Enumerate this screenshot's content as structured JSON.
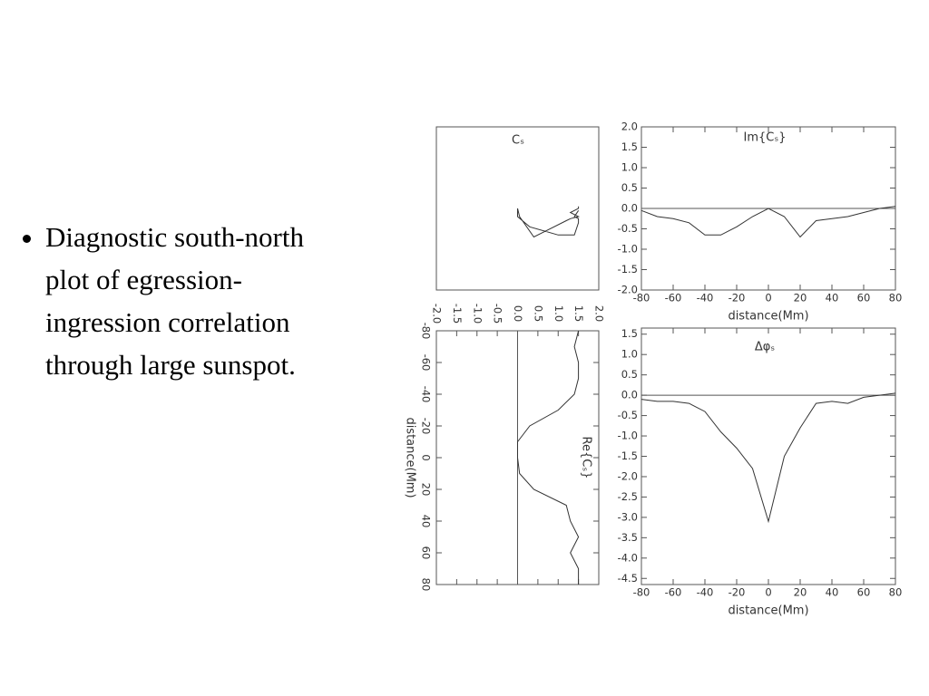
{
  "bullet": {
    "lines": [
      "Diagnostic south-north",
      "plot of egression-",
      "ingression correlation",
      "through large sunspot."
    ]
  },
  "chart_data": [
    {
      "type": "line",
      "title": "Cₛ",
      "color": "#333333",
      "x": [
        1.5,
        1.4,
        1.5,
        1.5,
        1.4,
        1.0,
        0.3,
        0.0,
        0.0,
        0.05,
        0.4,
        1.2,
        1.3,
        1.5,
        1.3,
        1.5,
        1.5
      ],
      "y": [
        -0.05,
        -0.2,
        -0.25,
        -0.35,
        -0.65,
        -0.65,
        -0.45,
        -0.2,
        0.0,
        -0.2,
        -0.7,
        -0.3,
        -0.25,
        -0.2,
        -0.1,
        0.0,
        0.05
      ],
      "xlim": [
        -2,
        2
      ],
      "ylim": [
        -2,
        2
      ]
    },
    {
      "type": "line",
      "title": "Im{Cₛ}",
      "xlabel": "distance(Mm)",
      "color": "#333333",
      "zero_line": true,
      "x": [
        -80,
        -70,
        -60,
        -50,
        -40,
        -30,
        -20,
        -10,
        0,
        10,
        20,
        30,
        40,
        50,
        60,
        70,
        80
      ],
      "values": [
        -0.05,
        -0.2,
        -0.25,
        -0.35,
        -0.65,
        -0.65,
        -0.45,
        -0.2,
        0.0,
        -0.2,
        -0.7,
        -0.3,
        -0.25,
        -0.2,
        -0.1,
        0.0,
        0.05
      ],
      "xlim": [
        -80,
        80
      ],
      "xticks": [
        -80,
        -60,
        -40,
        -20,
        0,
        20,
        40,
        60,
        80
      ],
      "ylim": [
        -2,
        2
      ],
      "yticks": [
        {
          "value": 2,
          "label": "2.0"
        },
        {
          "value": 1.5,
          "label": "1.5"
        },
        {
          "value": 1,
          "label": "1.0"
        },
        {
          "value": 0.5,
          "label": "0.5"
        },
        {
          "value": 0,
          "label": "0.0"
        },
        {
          "value": -0.5,
          "label": "-0.5"
        },
        {
          "value": -1,
          "label": "-1.0"
        },
        {
          "value": -1.5,
          "label": "-1.5"
        },
        {
          "value": -2,
          "label": "-2.0"
        }
      ]
    },
    {
      "type": "line",
      "orientation": "rotated",
      "title": "Re{Cₛ}",
      "xlabel": "distance(Mm)",
      "color": "#333333",
      "zero_line": true,
      "x": [
        -80,
        -70,
        -60,
        -50,
        -40,
        -30,
        -20,
        -10,
        0,
        10,
        20,
        30,
        40,
        50,
        60,
        70,
        80
      ],
      "values": [
        1.5,
        1.4,
        1.5,
        1.5,
        1.4,
        1.0,
        0.3,
        0.0,
        0.0,
        0.05,
        0.4,
        1.2,
        1.3,
        1.5,
        1.3,
        1.5,
        1.5
      ],
      "xlim": [
        -80,
        80
      ],
      "xticks": [
        -80,
        -60,
        -40,
        -20,
        0,
        20,
        40,
        60,
        80
      ],
      "ylim": [
        -2,
        2
      ],
      "yticks": [
        {
          "value": -2,
          "label": "-2.0"
        },
        {
          "value": -1.5,
          "label": "-1.5"
        },
        {
          "value": -1,
          "label": "-1.0"
        },
        {
          "value": -0.5,
          "label": "-0.5"
        },
        {
          "value": 0,
          "label": "0.0"
        },
        {
          "value": 0.5,
          "label": "0.5"
        },
        {
          "value": 1,
          "label": "1.0"
        },
        {
          "value": 1.5,
          "label": "1.5"
        },
        {
          "value": 2,
          "label": "2.0"
        }
      ]
    },
    {
      "type": "line",
      "title": "Δφₛ",
      "xlabel": "distance(Mm)",
      "color": "#333333",
      "zero_line": true,
      "x": [
        -80,
        -70,
        -60,
        -50,
        -40,
        -30,
        -20,
        -10,
        0,
        10,
        20,
        30,
        40,
        50,
        60,
        70,
        80
      ],
      "values": [
        -0.1,
        -0.15,
        -0.15,
        -0.2,
        -0.4,
        -0.9,
        -1.3,
        -1.8,
        -3.1,
        -1.5,
        -0.8,
        -0.2,
        -0.15,
        -0.2,
        -0.05,
        0.0,
        0.05
      ],
      "xlim": [
        -80,
        80
      ],
      "xticks": [
        -80,
        -60,
        -40,
        -20,
        0,
        20,
        40,
        60,
        80
      ],
      "ylim": [
        -4.65,
        1.65
      ],
      "yticks": [
        {
          "value": 1.5,
          "label": "1.5"
        },
        {
          "value": 1,
          "label": "1.0"
        },
        {
          "value": 0.5,
          "label": "0.5"
        },
        {
          "value": 0,
          "label": "0.0"
        },
        {
          "value": -0.5,
          "label": "-0.5"
        },
        {
          "value": -1,
          "label": "-1.0"
        },
        {
          "value": -1.5,
          "label": "-1.5"
        },
        {
          "value": -2,
          "label": "-2.0"
        },
        {
          "value": -2.5,
          "label": "-2.5"
        },
        {
          "value": -3,
          "label": "-3.0"
        },
        {
          "value": -3.5,
          "label": "-3.5"
        },
        {
          "value": -4,
          "label": "-4.0"
        },
        {
          "value": -4.5,
          "label": "-4.5"
        }
      ]
    }
  ]
}
